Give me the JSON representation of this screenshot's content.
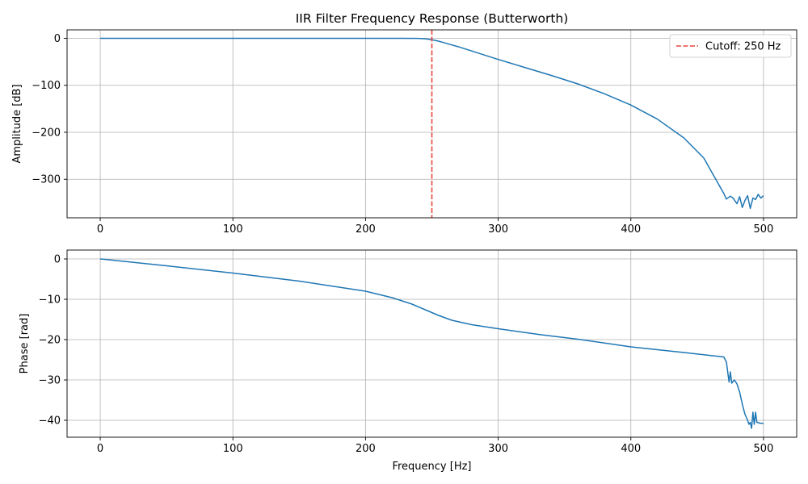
{
  "chart_data": [
    {
      "type": "line",
      "title": "IIR Filter Frequency Response (Butterworth)",
      "xlabel": "",
      "ylabel": "Amplitude [dB]",
      "xlim": [
        -25,
        525
      ],
      "ylim": [
        -382,
        18
      ],
      "xticks": [
        0,
        100,
        200,
        300,
        400,
        500
      ],
      "yticks": [
        0,
        -100,
        -200,
        -300
      ],
      "ytick_labels": [
        "0",
        "−100",
        "−200",
        "−300"
      ],
      "grid": true,
      "legend": {
        "position": "top-right",
        "entries": [
          "Cutoff: 250 Hz"
        ]
      },
      "series": [
        {
          "style": "solid",
          "color": "#1f77b4",
          "x": [
            0,
            50,
            100,
            150,
            200,
            230,
            240,
            245,
            250,
            255,
            260,
            270,
            280,
            290,
            300,
            320,
            340,
            360,
            380,
            400,
            420,
            440,
            455,
            465,
            470,
            472,
            475,
            477,
            480,
            482,
            484,
            486,
            488,
            490,
            492,
            494,
            496,
            498,
            500
          ],
          "y": [
            0,
            0,
            0,
            0,
            0,
            0,
            -0.3,
            -1,
            -3,
            -6,
            -10,
            -18,
            -27,
            -36,
            -45,
            -62,
            -79,
            -97,
            -118,
            -142,
            -172,
            -212,
            -255,
            -305,
            -330,
            -342,
            -336,
            -340,
            -352,
            -337,
            -360,
            -345,
            -335,
            -362,
            -340,
            -343,
            -332,
            -340,
            -335
          ]
        },
        {
          "name": "Cutoff: 250 Hz",
          "style": "dashed",
          "color": "#e8453c",
          "x": [
            250,
            250
          ],
          "y": [
            18,
            -382
          ]
        }
      ]
    },
    {
      "type": "line",
      "title": "",
      "xlabel": "Frequency [Hz]",
      "ylabel": "Phase [rad]",
      "xlim": [
        -25,
        525
      ],
      "ylim": [
        -44.2,
        2.2
      ],
      "xticks": [
        0,
        100,
        200,
        300,
        400,
        500
      ],
      "yticks": [
        0,
        -10,
        -20,
        -30,
        -40
      ],
      "ytick_labels": [
        "0",
        "−10",
        "−20",
        "−30",
        "−40"
      ],
      "grid": true,
      "series": [
        {
          "style": "solid",
          "color": "#1f77b4",
          "x": [
            0,
            50,
            100,
            150,
            200,
            220,
            235,
            245,
            255,
            265,
            280,
            300,
            330,
            360,
            400,
            440,
            470,
            472,
            474,
            475,
            476,
            478,
            480,
            482,
            484,
            486,
            488,
            489,
            490,
            491,
            492,
            493,
            494,
            495,
            497,
            500
          ],
          "y": [
            0,
            -1.7,
            -3.5,
            -5.5,
            -8,
            -9.6,
            -11.2,
            -12.6,
            -14,
            -15.2,
            -16.3,
            -17.3,
            -18.7,
            -19.9,
            -21.8,
            -23.2,
            -24.3,
            -25.5,
            -30.5,
            -28,
            -30.8,
            -30,
            -31,
            -33,
            -36,
            -38.5,
            -40,
            -41,
            -40.5,
            -42,
            -38,
            -41,
            -38,
            -40.5,
            -40.7,
            -40.8
          ]
        }
      ]
    }
  ]
}
